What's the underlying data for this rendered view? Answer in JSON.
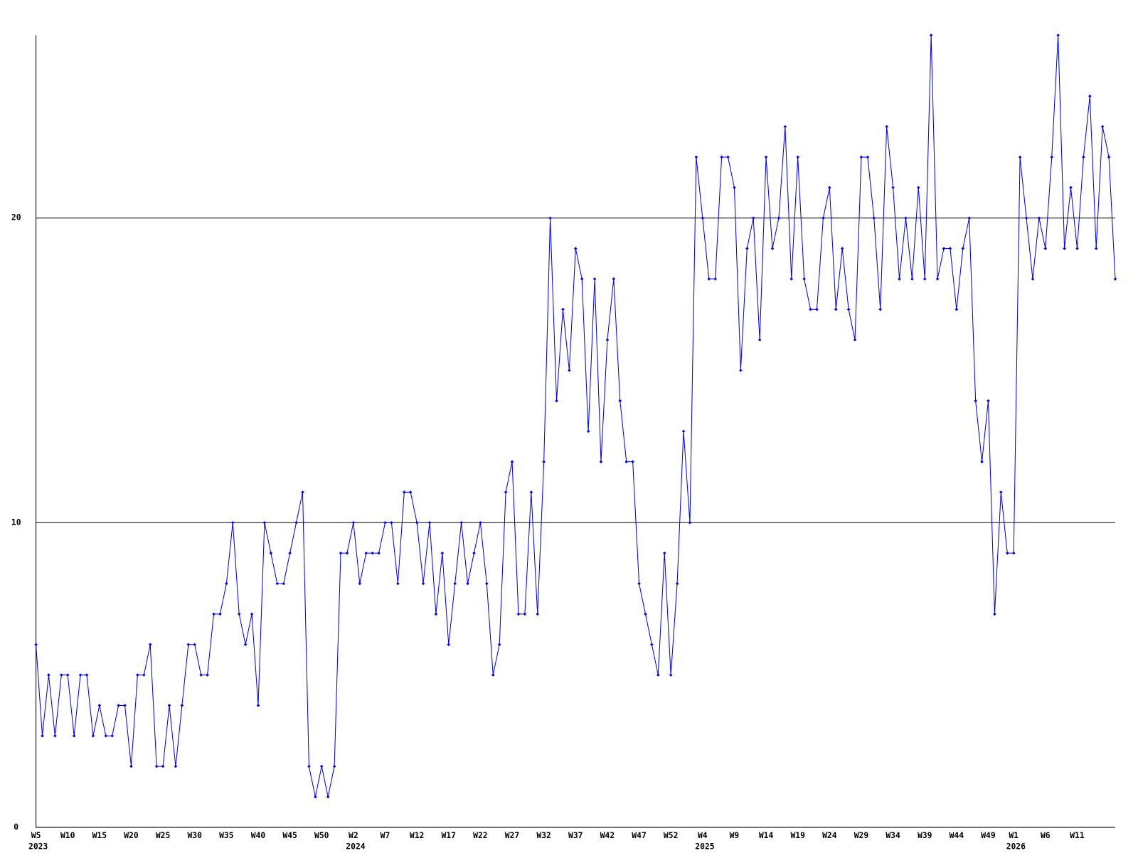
{
  "chart_data": {
    "type": "line",
    "categories": [
      "W5",
      null,
      null,
      null,
      null,
      "W10",
      null,
      null,
      null,
      null,
      "W15",
      null,
      null,
      null,
      null,
      "W20",
      null,
      null,
      null,
      null,
      "W25",
      null,
      null,
      null,
      null,
      "W30",
      null,
      null,
      null,
      null,
      "W35",
      null,
      null,
      null,
      null,
      "W40",
      null,
      null,
      null,
      null,
      "W45",
      null,
      null,
      null,
      null,
      "W50",
      null,
      null,
      null,
      null,
      "W2",
      null,
      null,
      null,
      null,
      "W7",
      null,
      null,
      null,
      null,
      "W12",
      null,
      null,
      null,
      null,
      "W17",
      null,
      null,
      null,
      null,
      "W22",
      null,
      null,
      null,
      null,
      "W27",
      null,
      null,
      null,
      null,
      "W32",
      null,
      null,
      null,
      null,
      "W37",
      null,
      null,
      null,
      null,
      "W42",
      null,
      null,
      null,
      null,
      "W47",
      null,
      null,
      null,
      null,
      "W52",
      null,
      null,
      null,
      null,
      "W4",
      null,
      null,
      null,
      null,
      "W9",
      null,
      null,
      null,
      null,
      "W14",
      null,
      null,
      null,
      null,
      "W19",
      null,
      null,
      null,
      null,
      "W24",
      null,
      null,
      null,
      null,
      "W29",
      null,
      null,
      null,
      null,
      "W34",
      null,
      null,
      null,
      null,
      "W39",
      null,
      null,
      null,
      null,
      "W44",
      null,
      null,
      null,
      null,
      "W49",
      null,
      null,
      null,
      "W1",
      null,
      null,
      null,
      null,
      "W6",
      null,
      null,
      null,
      null,
      "W11",
      null,
      null,
      null,
      null,
      null,
      null
    ],
    "category_years": [
      "2023",
      null,
      null,
      null,
      null,
      null,
      null,
      null,
      null,
      null,
      null,
      null,
      null,
      null,
      null,
      null,
      null,
      null,
      null,
      null,
      null,
      null,
      null,
      null,
      null,
      null,
      null,
      null,
      null,
      null,
      null,
      null,
      null,
      null,
      null,
      null,
      null,
      null,
      null,
      null,
      null,
      null,
      null,
      null,
      null,
      null,
      null,
      null,
      null,
      null,
      "2024",
      null,
      null,
      null,
      null,
      null,
      null,
      null,
      null,
      null,
      null,
      null,
      null,
      null,
      null,
      null,
      null,
      null,
      null,
      null,
      null,
      null,
      null,
      null,
      null,
      null,
      null,
      null,
      null,
      null,
      null,
      null,
      null,
      null,
      null,
      null,
      null,
      null,
      null,
      null,
      null,
      null,
      null,
      null,
      null,
      null,
      null,
      null,
      null,
      null,
      null,
      null,
      null,
      null,
      null,
      "2025",
      null,
      null,
      null,
      null,
      null,
      null,
      null,
      null,
      null,
      null,
      null,
      null,
      null,
      null,
      null,
      null,
      null,
      null,
      null,
      null,
      null,
      null,
      null,
      null,
      null,
      null,
      null,
      null,
      null,
      null,
      null,
      null,
      null,
      null,
      null,
      null,
      null,
      null,
      null,
      null,
      null,
      null,
      null,
      null,
      null,
      null,
      null,
      null,
      "2026",
      null,
      null,
      null,
      null,
      null,
      null,
      null,
      null,
      null,
      null,
      null,
      null,
      null,
      null,
      null,
      null
    ],
    "series": [
      {
        "color": "#0000ff",
        "values": [
          6,
          3,
          5,
          3,
          5,
          5,
          3,
          5,
          5,
          3,
          4,
          3,
          3,
          4,
          4,
          2,
          5,
          5,
          6,
          2,
          2,
          4,
          2,
          4,
          6,
          6,
          5,
          5,
          7,
          7,
          8,
          10,
          7,
          6,
          7,
          4,
          10,
          9,
          8,
          8,
          9,
          10,
          11,
          2,
          1,
          2,
          1,
          2,
          9,
          9,
          10,
          8,
          9,
          9,
          9,
          10,
          10,
          8,
          11,
          11,
          10,
          8,
          10,
          7,
          9,
          6,
          8,
          10,
          8,
          9,
          10,
          8,
          5,
          6,
          11,
          12,
          7,
          7,
          11,
          7,
          12,
          20,
          14,
          17,
          15,
          19,
          18,
          13,
          18,
          12,
          16,
          18,
          14,
          12,
          12,
          8,
          7,
          6,
          5,
          9,
          5,
          8,
          13,
          10,
          22,
          20,
          18,
          18,
          22,
          22,
          21,
          15,
          19,
          20,
          16,
          22,
          19,
          20,
          23,
          18,
          22,
          18,
          17,
          17,
          20,
          21,
          17,
          19,
          17,
          16,
          22,
          22,
          20,
          17,
          23,
          21,
          18,
          20,
          18,
          21,
          18,
          26,
          18,
          19,
          19,
          17,
          19,
          20,
          14,
          12,
          14,
          7,
          11,
          9,
          9,
          22,
          20,
          18,
          20,
          19,
          22,
          26,
          19,
          21,
          19,
          22,
          24,
          19,
          23,
          22,
          18
        ]
      }
    ],
    "ylim": [
      0,
      26
    ],
    "yticks": [
      0,
      10,
      20
    ],
    "grid": true
  }
}
